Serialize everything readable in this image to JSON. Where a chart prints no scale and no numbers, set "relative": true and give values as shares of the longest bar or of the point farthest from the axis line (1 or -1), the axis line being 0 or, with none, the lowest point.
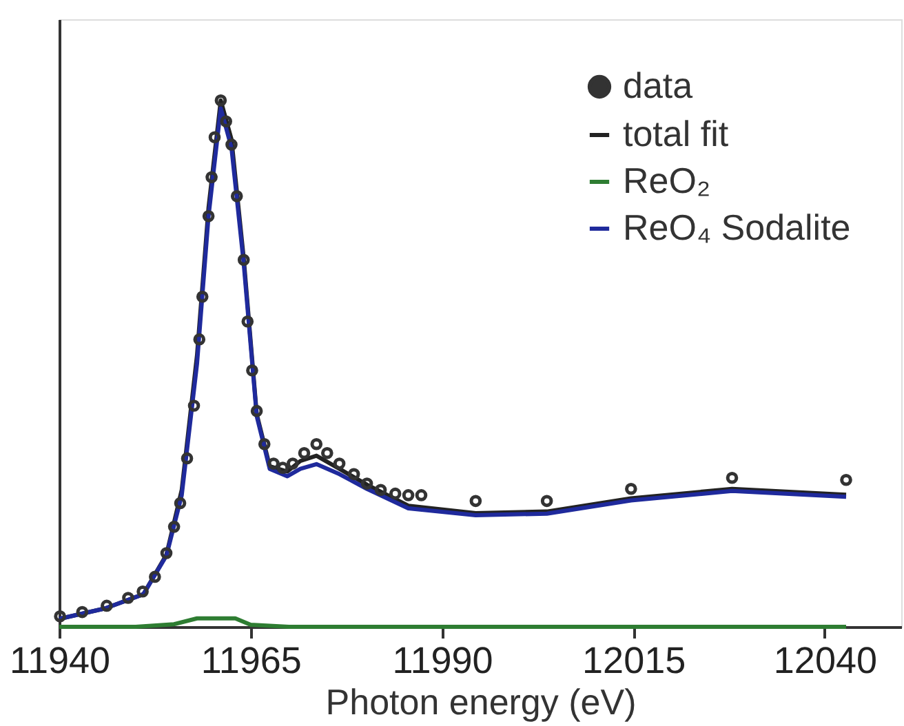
{
  "chart_data": {
    "type": "line",
    "xlabel": "Photon energy (eV)",
    "relative": true,
    "xlim": [
      11940,
      12050
    ],
    "xticks": [
      11940,
      11965,
      11990,
      12015,
      12040
    ],
    "tick_labels": "x",
    "grid": false,
    "legend": "top right",
    "line_style": "solid",
    "series": [
      {
        "name": "data",
        "type": "scatter",
        "marker": "circle",
        "color": "#333333",
        "x": [
          11940.1,
          11943,
          11946.2,
          11949,
          11950.9,
          11952.5,
          11954,
          11955,
          11955.8,
          11956.7,
          11957.6,
          11958.3,
          11958.7,
          11959.5,
          11959.9,
          11960.3,
          11961.1,
          11961.8,
          11962.5,
          11963.2,
          11964.1,
          11964.6,
          11965.2,
          11965.8,
          11966.8,
          11968,
          11969.2,
          11970.5,
          11972,
          11973.6,
          11975,
          11976.6,
          11978.5,
          11980.2,
          11982,
          11983.9,
          11985.6,
          11987.3,
          11994.4,
          12003.7,
          12014.7,
          12027.9,
          12042.8
        ],
        "values": [
          0.02,
          0.028,
          0.04,
          0.055,
          0.067,
          0.095,
          0.14,
          0.19,
          0.235,
          0.32,
          0.42,
          0.546,
          0.627,
          0.78,
          0.854,
          0.93,
          1.0,
          0.96,
          0.916,
          0.818,
          0.697,
          0.58,
          0.487,
          0.41,
          0.347,
          0.31,
          0.302,
          0.31,
          0.33,
          0.347,
          0.33,
          0.31,
          0.29,
          0.272,
          0.26,
          0.253,
          0.25,
          0.25,
          0.239,
          0.239,
          0.262,
          0.283,
          0.279
        ]
      },
      {
        "name": "total fit",
        "color": "#222222",
        "x": [
          11940,
          11946,
          11951,
          11954,
          11956,
          11958,
          11959.5,
          11961.1,
          11962.5,
          11964.1,
          11965.8,
          11967.5,
          11969.8,
          11971.5,
          11973.6,
          11976.6,
          11980.2,
          11985.6,
          11994.4,
          12003.7,
          12014.7,
          12027.9,
          12042.8
        ],
        "values": [
          0.015,
          0.035,
          0.062,
          0.137,
          0.26,
          0.516,
          0.796,
          1.0,
          0.926,
          0.7,
          0.404,
          0.305,
          0.295,
          0.315,
          0.325,
          0.3,
          0.27,
          0.23,
          0.216,
          0.219,
          0.244,
          0.262,
          0.251
        ]
      },
      {
        "name": "ReO₂",
        "color": "#2e7d32",
        "x": [
          11940,
          11950,
          11955,
          11958,
          11963,
          11965,
          11970,
          12042.8
        ],
        "values": [
          0.0,
          0.0,
          0.005,
          0.016,
          0.016,
          0.004,
          0.0,
          0.0
        ]
      },
      {
        "name": "ReO₄ Sodalite",
        "color": "#1f2a9c",
        "x": [
          11940,
          11946,
          11951,
          11954,
          11956,
          11958,
          11959.5,
          11961.1,
          11962.5,
          11964.1,
          11965.8,
          11967.5,
          11969.8,
          11971.5,
          11973.6,
          11976.6,
          11980.2,
          11985.6,
          11994.4,
          12003.7,
          12014.7,
          12027.9,
          12042.8
        ],
        "values": [
          0.015,
          0.035,
          0.062,
          0.135,
          0.25,
          0.5,
          0.78,
          0.985,
          0.91,
          0.69,
          0.4,
          0.3,
          0.286,
          0.3,
          0.309,
          0.29,
          0.262,
          0.225,
          0.212,
          0.215,
          0.24,
          0.258,
          0.247
        ]
      }
    ]
  }
}
